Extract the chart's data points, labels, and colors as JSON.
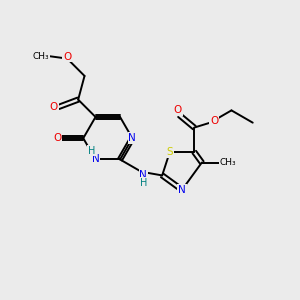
{
  "background_color": "#ebebeb",
  "bond_color": "#000000",
  "atom_colors": {
    "N": "#0000ee",
    "O": "#ee0000",
    "S": "#cccc00",
    "C": "#000000",
    "H": "#008080"
  },
  "figsize": [
    3.0,
    3.0
  ],
  "dpi": 100,
  "bond_lw": 1.4
}
